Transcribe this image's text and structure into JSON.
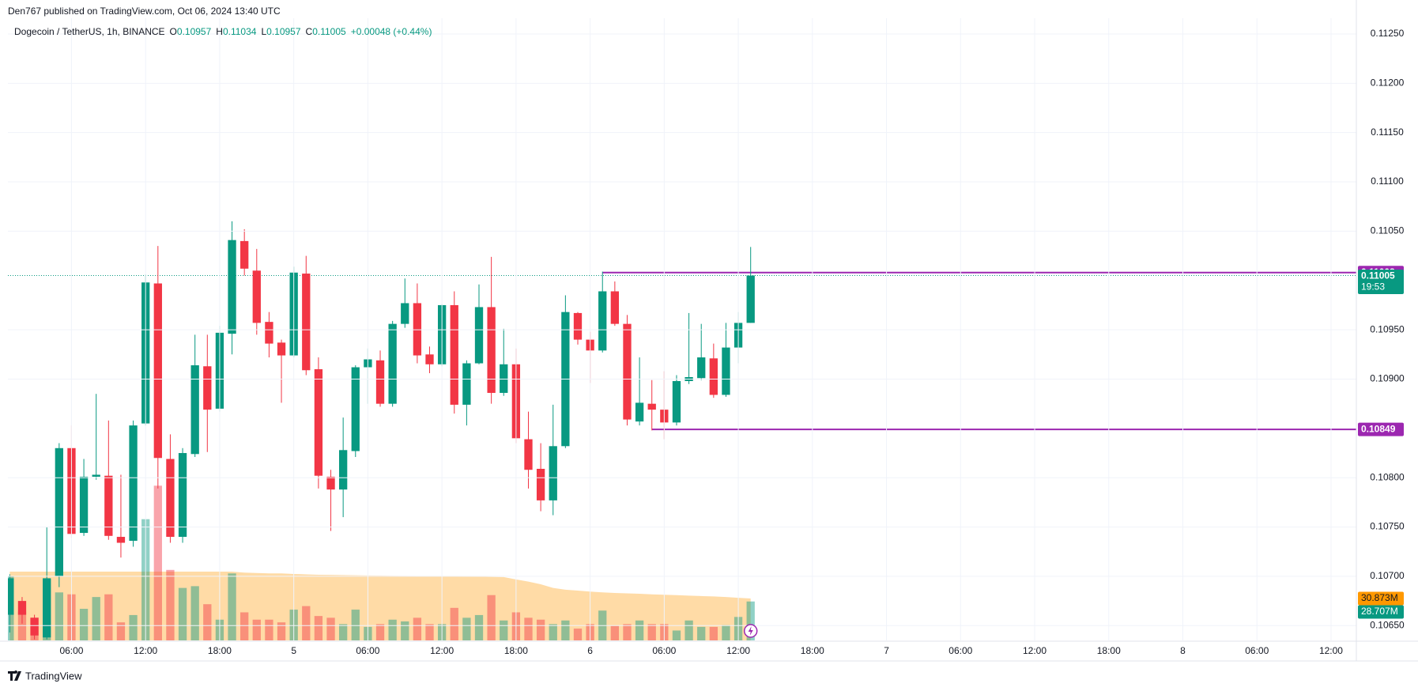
{
  "header": {
    "published": "Den767 published on TradingView.com, Oct 06, 2024 13:40 UTC"
  },
  "footer": {
    "brand": "TradingView"
  },
  "chart_data": {
    "type": "candlestick",
    "title": "Dogecoin / TetherUS, 1h, BINANCE",
    "ohlc_legend": [
      {
        "label": "O",
        "value": 0.10957
      },
      {
        "label": "H",
        "value": 0.11034
      },
      {
        "label": "L",
        "value": 0.10957
      },
      {
        "label": "C",
        "value": 0.11005
      }
    ],
    "change": "+0.00048 (+0.44%)",
    "up_color": "#089981",
    "down_color": "#f23645",
    "open": [
      0.10661,
      0.10675,
      0.10658,
      0.10638,
      0.107,
      0.1083,
      0.10744,
      0.10801,
      0.10802,
      0.1074,
      0.10736,
      0.10855,
      0.10997,
      0.10819,
      0.1074,
      0.10824,
      0.10913,
      0.1087,
      0.10946,
      0.1104,
      0.1101,
      0.10958,
      0.10937,
      0.10924,
      0.11007,
      0.1091,
      0.10801,
      0.10788,
      0.10827,
      0.10912,
      0.10919,
      0.10875,
      0.10956,
      0.10977,
      0.10925,
      0.10915,
      0.10975,
      0.10874,
      0.10916,
      0.10973,
      0.10886,
      0.10915,
      0.10839,
      0.10809,
      0.10777,
      0.10832,
      0.10967,
      0.1094,
      0.10929,
      0.10989,
      0.10956,
      0.10857,
      0.10875,
      0.10869,
      0.10856,
      0.10898,
      0.10901,
      0.10921,
      0.10884,
      0.10932,
      0.10957
    ],
    "high": [
      0.10702,
      0.10679,
      0.10661,
      0.1075,
      0.10835,
      0.10853,
      0.10819,
      0.10885,
      0.10858,
      0.10803,
      0.10858,
      0.11006,
      0.11035,
      0.10844,
      0.1083,
      0.10945,
      0.10945,
      0.10954,
      0.1106,
      0.11052,
      0.11032,
      0.10968,
      0.1094,
      0.11014,
      0.11025,
      0.10922,
      0.10808,
      0.10861,
      0.10914,
      0.10931,
      0.10929,
      0.10959,
      0.11002,
      0.10997,
      0.10933,
      0.10976,
      0.10989,
      0.10919,
      0.10996,
      0.11024,
      0.10951,
      0.10931,
      0.10867,
      0.10835,
      0.10874,
      0.10985,
      0.10968,
      0.10948,
      0.11009,
      0.10999,
      0.10965,
      0.10922,
      0.10899,
      0.10908,
      0.10904,
      0.10967,
      0.10956,
      0.10936,
      0.10957,
      0.10968,
      0.11034
    ],
    "low": [
      0.10643,
      0.10652,
      0.10636,
      0.10636,
      0.10689,
      0.10739,
      0.10741,
      0.10798,
      0.10737,
      0.10719,
      0.1073,
      0.10853,
      0.10789,
      0.10734,
      0.10734,
      0.10821,
      0.10826,
      0.10867,
      0.10925,
      0.11005,
      0.10945,
      0.10922,
      0.10876,
      0.10922,
      0.10904,
      0.10789,
      0.10746,
      0.1076,
      0.10821,
      0.10875,
      0.10872,
      0.10872,
      0.10952,
      0.10916,
      0.10906,
      0.10913,
      0.10865,
      0.10853,
      0.10915,
      0.10875,
      0.10883,
      0.10835,
      0.10789,
      0.10766,
      0.10762,
      0.1083,
      0.10935,
      0.10896,
      0.10927,
      0.10954,
      0.10853,
      0.10853,
      0.10848,
      0.10839,
      0.10853,
      0.10895,
      0.10899,
      0.10881,
      0.10882,
      0.10916,
      0.10957
    ],
    "close": [
      0.10698,
      0.10661,
      0.1064,
      0.10698,
      0.1083,
      0.10743,
      0.10801,
      0.10803,
      0.10741,
      0.10734,
      0.10853,
      0.10998,
      0.1082,
      0.1074,
      0.10825,
      0.10914,
      0.10869,
      0.10947,
      0.11041,
      0.11012,
      0.10957,
      0.10936,
      0.10924,
      0.11008,
      0.10909,
      0.10802,
      0.10788,
      0.10828,
      0.10912,
      0.1092,
      0.10875,
      0.10956,
      0.10977,
      0.10924,
      0.10915,
      0.10975,
      0.10874,
      0.10916,
      0.10973,
      0.10886,
      0.10915,
      0.1084,
      0.10808,
      0.10777,
      0.10832,
      0.10968,
      0.1094,
      0.10929,
      0.10989,
      0.10956,
      0.10859,
      0.10876,
      0.10869,
      0.10856,
      0.10898,
      0.10902,
      0.10922,
      0.10884,
      0.10932,
      0.10957,
      0.11005
    ],
    "countdown": "19:53",
    "volume": {
      "values": [
        47.4,
        21.3,
        16.7,
        45.4,
        35.4,
        34.0,
        23.3,
        32.0,
        34.0,
        13.3,
        18.7,
        89.4,
        114.1,
        52.0,
        38.7,
        40.0,
        26.7,
        15.3,
        49.4,
        20.7,
        15.3,
        15.3,
        13.3,
        22.7,
        25.3,
        18.0,
        16.7,
        12.0,
        22.7,
        10.0,
        12.0,
        15.3,
        14.0,
        16.7,
        12.0,
        12.0,
        24.0,
        16.7,
        18.7,
        33.4,
        14.7,
        20.7,
        16.7,
        15.3,
        12.0,
        14.7,
        8.7,
        12.0,
        22.0,
        10.7,
        12.0,
        14.7,
        12.0,
        12.0,
        7.3,
        14.7,
        10.0,
        10.0,
        11.3,
        17.3,
        28.707
      ],
      "value_label": "28.707M",
      "ma": [
        50.7,
        50.7,
        50.7,
        50.7,
        50.7,
        50.7,
        50.7,
        50.7,
        50.7,
        50.7,
        50.7,
        50.7,
        50.7,
        50.7,
        50.7,
        50.7,
        50.7,
        50.7,
        50.7,
        50.0,
        49.7,
        49.4,
        49.4,
        49.0,
        48.7,
        48.4,
        48.3,
        48.2,
        48.0,
        47.9,
        47.8,
        47.7,
        47.6,
        47.5,
        47.4,
        47.3,
        47.2,
        47.1,
        47.0,
        46.9,
        46.7,
        45.0,
        43.4,
        41.4,
        38.7,
        37.4,
        36.7,
        36.0,
        35.4,
        35.0,
        34.7,
        34.4,
        34.0,
        33.7,
        33.4,
        33.0,
        32.7,
        32.4,
        32.0,
        31.4,
        30.873
      ],
      "ma_label": "30.873M",
      "ma_color": "#ff9800"
    },
    "levels": [
      {
        "value": 0.11008,
        "x_start": 48,
        "color": "#9c27b0"
      },
      {
        "value": 0.10849,
        "x_start": 52,
        "color": "#9c27b0"
      }
    ],
    "xlim": [
      -0.15,
      109.05
    ],
    "xticks": [
      {
        "value": 5,
        "label": "06:00"
      },
      {
        "value": 11,
        "label": "12:00"
      },
      {
        "value": 17,
        "label": "18:00"
      },
      {
        "value": 23,
        "label": "5"
      },
      {
        "value": 29,
        "label": "06:00"
      },
      {
        "value": 35,
        "label": "12:00"
      },
      {
        "value": 41,
        "label": "18:00"
      },
      {
        "value": 47,
        "label": "6"
      },
      {
        "value": 53,
        "label": "06:00"
      },
      {
        "value": 59,
        "label": "12:00"
      },
      {
        "value": 65,
        "label": "18:00"
      },
      {
        "value": 71,
        "label": "7"
      },
      {
        "value": 77,
        "label": "06:00"
      },
      {
        "value": 83,
        "label": "12:00"
      },
      {
        "value": 89,
        "label": "18:00"
      },
      {
        "value": 95,
        "label": "8"
      },
      {
        "value": 101,
        "label": "06:00"
      },
      {
        "value": 107,
        "label": "12:00"
      }
    ],
    "ylim": [
      0.10635,
      0.11266
    ],
    "yticks": [
      {
        "value": 0.1065,
        "label": "0.10650"
      },
      {
        "value": 0.107,
        "label": "0.10700"
      },
      {
        "value": 0.1075,
        "label": "0.10750"
      },
      {
        "value": 0.108,
        "label": "0.10800"
      },
      {
        "value": 0.109,
        "label": "0.10900"
      },
      {
        "value": 0.1095,
        "label": "0.10950"
      },
      {
        "value": 0.1105,
        "label": "0.11050"
      },
      {
        "value": 0.111,
        "label": "0.11100"
      },
      {
        "value": 0.1115,
        "label": "0.11150"
      },
      {
        "value": 0.112,
        "label": "0.11200"
      },
      {
        "value": 0.1125,
        "label": "0.11250"
      }
    ],
    "grid": true
  }
}
